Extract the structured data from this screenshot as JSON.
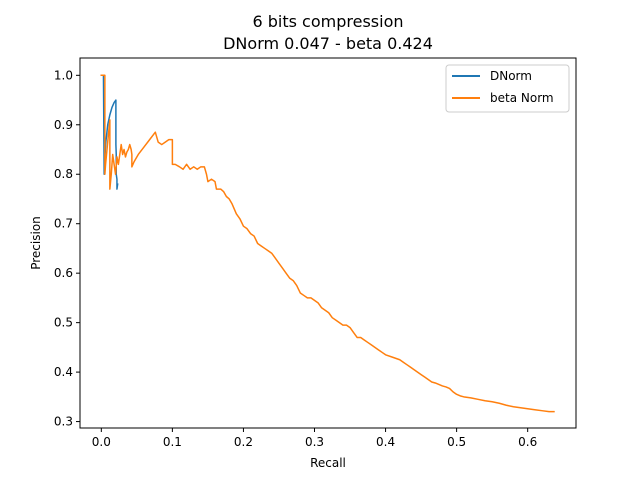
{
  "chart_data": {
    "type": "line",
    "title_line1": "6 bits compression",
    "title_line2": "DNorm 0.047 - beta 0.424",
    "xlabel": "Recall",
    "ylabel": "Precision",
    "xlim": [
      -0.03,
      0.668
    ],
    "ylim": [
      0.287,
      1.035
    ],
    "xticks": [
      {
        "value": 0.0,
        "label": "0.0"
      },
      {
        "value": 0.1,
        "label": "0.1"
      },
      {
        "value": 0.2,
        "label": "0.2"
      },
      {
        "value": 0.3,
        "label": "0.3"
      },
      {
        "value": 0.4,
        "label": "0.4"
      },
      {
        "value": 0.5,
        "label": "0.5"
      },
      {
        "value": 0.6,
        "label": "0.6"
      }
    ],
    "yticks": [
      {
        "value": 0.3,
        "label": "0.3"
      },
      {
        "value": 0.4,
        "label": "0.4"
      },
      {
        "value": 0.5,
        "label": "0.5"
      },
      {
        "value": 0.6,
        "label": "0.6"
      },
      {
        "value": 0.7,
        "label": "0.7"
      },
      {
        "value": 0.8,
        "label": "0.8"
      },
      {
        "value": 0.9,
        "label": "0.9"
      },
      {
        "value": 1.0,
        "label": "1.0"
      }
    ],
    "grid": false,
    "legend_position": "top-right",
    "series": [
      {
        "name": "DNorm",
        "color": "#1f77b4",
        "points": [
          [
            0.0,
            1.0
          ],
          [
            0.003,
            1.0
          ],
          [
            0.004,
            0.8
          ],
          [
            0.006,
            0.86
          ],
          [
            0.009,
            0.9
          ],
          [
            0.012,
            0.92
          ],
          [
            0.015,
            0.935
          ],
          [
            0.018,
            0.945
          ],
          [
            0.0205,
            0.95
          ],
          [
            0.0205,
            0.86
          ],
          [
            0.021,
            0.84
          ],
          [
            0.021,
            0.8
          ],
          [
            0.022,
            0.79
          ],
          [
            0.022,
            0.77
          ],
          [
            0.023,
            0.78
          ]
        ]
      },
      {
        "name": "beta Norm",
        "color": "#ff7f0e",
        "points": [
          [
            0.0,
            1.0
          ],
          [
            0.005,
            1.0
          ],
          [
            0.005,
            0.8
          ],
          [
            0.006,
            0.82
          ],
          [
            0.008,
            0.85
          ],
          [
            0.012,
            0.91
          ],
          [
            0.012,
            0.77
          ],
          [
            0.014,
            0.8
          ],
          [
            0.016,
            0.84
          ],
          [
            0.018,
            0.82
          ],
          [
            0.02,
            0.8
          ],
          [
            0.022,
            0.835
          ],
          [
            0.024,
            0.82
          ],
          [
            0.025,
            0.83
          ],
          [
            0.028,
            0.86
          ],
          [
            0.03,
            0.84
          ],
          [
            0.032,
            0.85
          ],
          [
            0.034,
            0.835
          ],
          [
            0.036,
            0.845
          ],
          [
            0.038,
            0.85
          ],
          [
            0.04,
            0.86
          ],
          [
            0.042,
            0.85
          ],
          [
            0.043,
            0.84
          ],
          [
            0.043,
            0.815
          ],
          [
            0.046,
            0.825
          ],
          [
            0.052,
            0.84
          ],
          [
            0.06,
            0.855
          ],
          [
            0.068,
            0.87
          ],
          [
            0.076,
            0.885
          ],
          [
            0.08,
            0.865
          ],
          [
            0.085,
            0.86
          ],
          [
            0.09,
            0.865
          ],
          [
            0.095,
            0.87
          ],
          [
            0.1,
            0.87
          ],
          [
            0.1,
            0.82
          ],
          [
            0.104,
            0.82
          ],
          [
            0.11,
            0.815
          ],
          [
            0.115,
            0.81
          ],
          [
            0.12,
            0.82
          ],
          [
            0.125,
            0.81
          ],
          [
            0.13,
            0.815
          ],
          [
            0.135,
            0.81
          ],
          [
            0.14,
            0.815
          ],
          [
            0.145,
            0.815
          ],
          [
            0.148,
            0.8
          ],
          [
            0.15,
            0.785
          ],
          [
            0.155,
            0.79
          ],
          [
            0.16,
            0.785
          ],
          [
            0.162,
            0.77
          ],
          [
            0.168,
            0.77
          ],
          [
            0.172,
            0.765
          ],
          [
            0.176,
            0.755
          ],
          [
            0.18,
            0.75
          ],
          [
            0.184,
            0.74
          ],
          [
            0.19,
            0.72
          ],
          [
            0.195,
            0.71
          ],
          [
            0.2,
            0.695
          ],
          [
            0.205,
            0.69
          ],
          [
            0.21,
            0.68
          ],
          [
            0.215,
            0.675
          ],
          [
            0.22,
            0.66
          ],
          [
            0.225,
            0.655
          ],
          [
            0.23,
            0.65
          ],
          [
            0.235,
            0.645
          ],
          [
            0.24,
            0.64
          ],
          [
            0.245,
            0.63
          ],
          [
            0.25,
            0.62
          ],
          [
            0.255,
            0.61
          ],
          [
            0.26,
            0.6
          ],
          [
            0.265,
            0.59
          ],
          [
            0.27,
            0.585
          ],
          [
            0.275,
            0.575
          ],
          [
            0.28,
            0.56
          ],
          [
            0.285,
            0.555
          ],
          [
            0.29,
            0.55
          ],
          [
            0.295,
            0.55
          ],
          [
            0.3,
            0.545
          ],
          [
            0.305,
            0.54
          ],
          [
            0.31,
            0.53
          ],
          [
            0.315,
            0.525
          ],
          [
            0.32,
            0.52
          ],
          [
            0.325,
            0.51
          ],
          [
            0.33,
            0.505
          ],
          [
            0.335,
            0.5
          ],
          [
            0.34,
            0.495
          ],
          [
            0.345,
            0.495
          ],
          [
            0.35,
            0.49
          ],
          [
            0.355,
            0.48
          ],
          [
            0.36,
            0.47
          ],
          [
            0.365,
            0.47
          ],
          [
            0.37,
            0.465
          ],
          [
            0.375,
            0.46
          ],
          [
            0.38,
            0.455
          ],
          [
            0.385,
            0.45
          ],
          [
            0.39,
            0.445
          ],
          [
            0.395,
            0.44
          ],
          [
            0.4,
            0.435
          ],
          [
            0.41,
            0.43
          ],
          [
            0.42,
            0.425
          ],
          [
            0.425,
            0.42
          ],
          [
            0.43,
            0.415
          ],
          [
            0.435,
            0.41
          ],
          [
            0.44,
            0.405
          ],
          [
            0.445,
            0.4
          ],
          [
            0.45,
            0.395
          ],
          [
            0.455,
            0.39
          ],
          [
            0.46,
            0.385
          ],
          [
            0.465,
            0.38
          ],
          [
            0.47,
            0.378
          ],
          [
            0.475,
            0.375
          ],
          [
            0.48,
            0.372
          ],
          [
            0.485,
            0.37
          ],
          [
            0.49,
            0.367
          ],
          [
            0.495,
            0.36
          ],
          [
            0.5,
            0.355
          ],
          [
            0.505,
            0.352
          ],
          [
            0.51,
            0.35
          ],
          [
            0.52,
            0.348
          ],
          [
            0.53,
            0.345
          ],
          [
            0.54,
            0.342
          ],
          [
            0.55,
            0.34
          ],
          [
            0.56,
            0.337
          ],
          [
            0.57,
            0.333
          ],
          [
            0.58,
            0.33
          ],
          [
            0.59,
            0.328
          ],
          [
            0.6,
            0.326
          ],
          [
            0.61,
            0.324
          ],
          [
            0.62,
            0.322
          ],
          [
            0.63,
            0.32
          ],
          [
            0.637,
            0.32
          ]
        ]
      }
    ]
  }
}
